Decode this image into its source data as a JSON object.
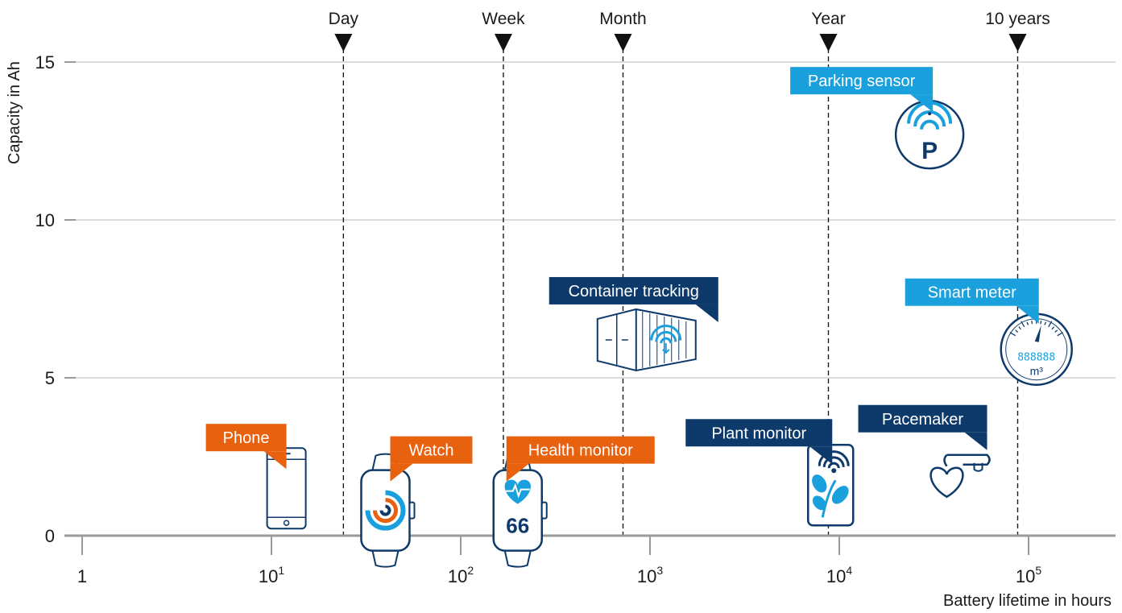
{
  "chart_data": {
    "type": "scatter",
    "title": "",
    "xlabel": "Battery lifetime in hours",
    "ylabel": "Capacity in Ah",
    "x_scale": "log",
    "xlim": [
      1,
      200000
    ],
    "ylim": [
      0,
      15.5
    ],
    "x_ticks": [
      {
        "value": 1,
        "base": "1",
        "exp": ""
      },
      {
        "value": 10,
        "base": "10",
        "exp": "1"
      },
      {
        "value": 100,
        "base": "10",
        "exp": "2"
      },
      {
        "value": 1000,
        "base": "10",
        "exp": "3"
      },
      {
        "value": 10000,
        "base": "10",
        "exp": "4"
      },
      {
        "value": 100000,
        "base": "10",
        "exp": "5"
      }
    ],
    "y_ticks": [
      0,
      5,
      10,
      15
    ],
    "grid": true,
    "time_markers": [
      {
        "label": "Day",
        "x": 24
      },
      {
        "label": "Week",
        "x": 168
      },
      {
        "label": "Month",
        "x": 720
      },
      {
        "label": "Year",
        "x": 8760
      },
      {
        "label": "10 years",
        "x": 87600
      }
    ],
    "points": [
      {
        "label": "Phone",
        "x": 12,
        "y": 1.5,
        "color": "#e8610e",
        "icon": "phone-icon"
      },
      {
        "label": "Watch",
        "x": 40,
        "y": 0.8,
        "color": "#e8610e",
        "icon": "smartwatch-icon"
      },
      {
        "label": "Health monitor",
        "x": 200,
        "y": 0.8,
        "color": "#e8610e",
        "icon": "heart-rate-watch-icon",
        "icon_text": "66"
      },
      {
        "label": "Container tracking",
        "x": 950,
        "y": 6.2,
        "color": "#0d3a6b",
        "icon": "shipping-container-icon"
      },
      {
        "label": "Plant monitor",
        "x": 9000,
        "y": 1.6,
        "color": "#0d3a6b",
        "icon": "plant-sensor-icon"
      },
      {
        "label": "Parking sensor",
        "x": 30000,
        "y": 12.7,
        "color": "#1aa0dc",
        "icon": "parking-sensor-icon",
        "icon_text": "P"
      },
      {
        "label": "Smart meter",
        "x": 110000,
        "y": 5.9,
        "color": "#1aa0dc",
        "icon": "gas-meter-icon",
        "icon_text": "888888",
        "unit_text": "m³"
      },
      {
        "label": "Pacemaker",
        "x": 45000,
        "y": 2.2,
        "color": "#0d3a6b",
        "icon": "pacemaker-icon"
      }
    ]
  }
}
